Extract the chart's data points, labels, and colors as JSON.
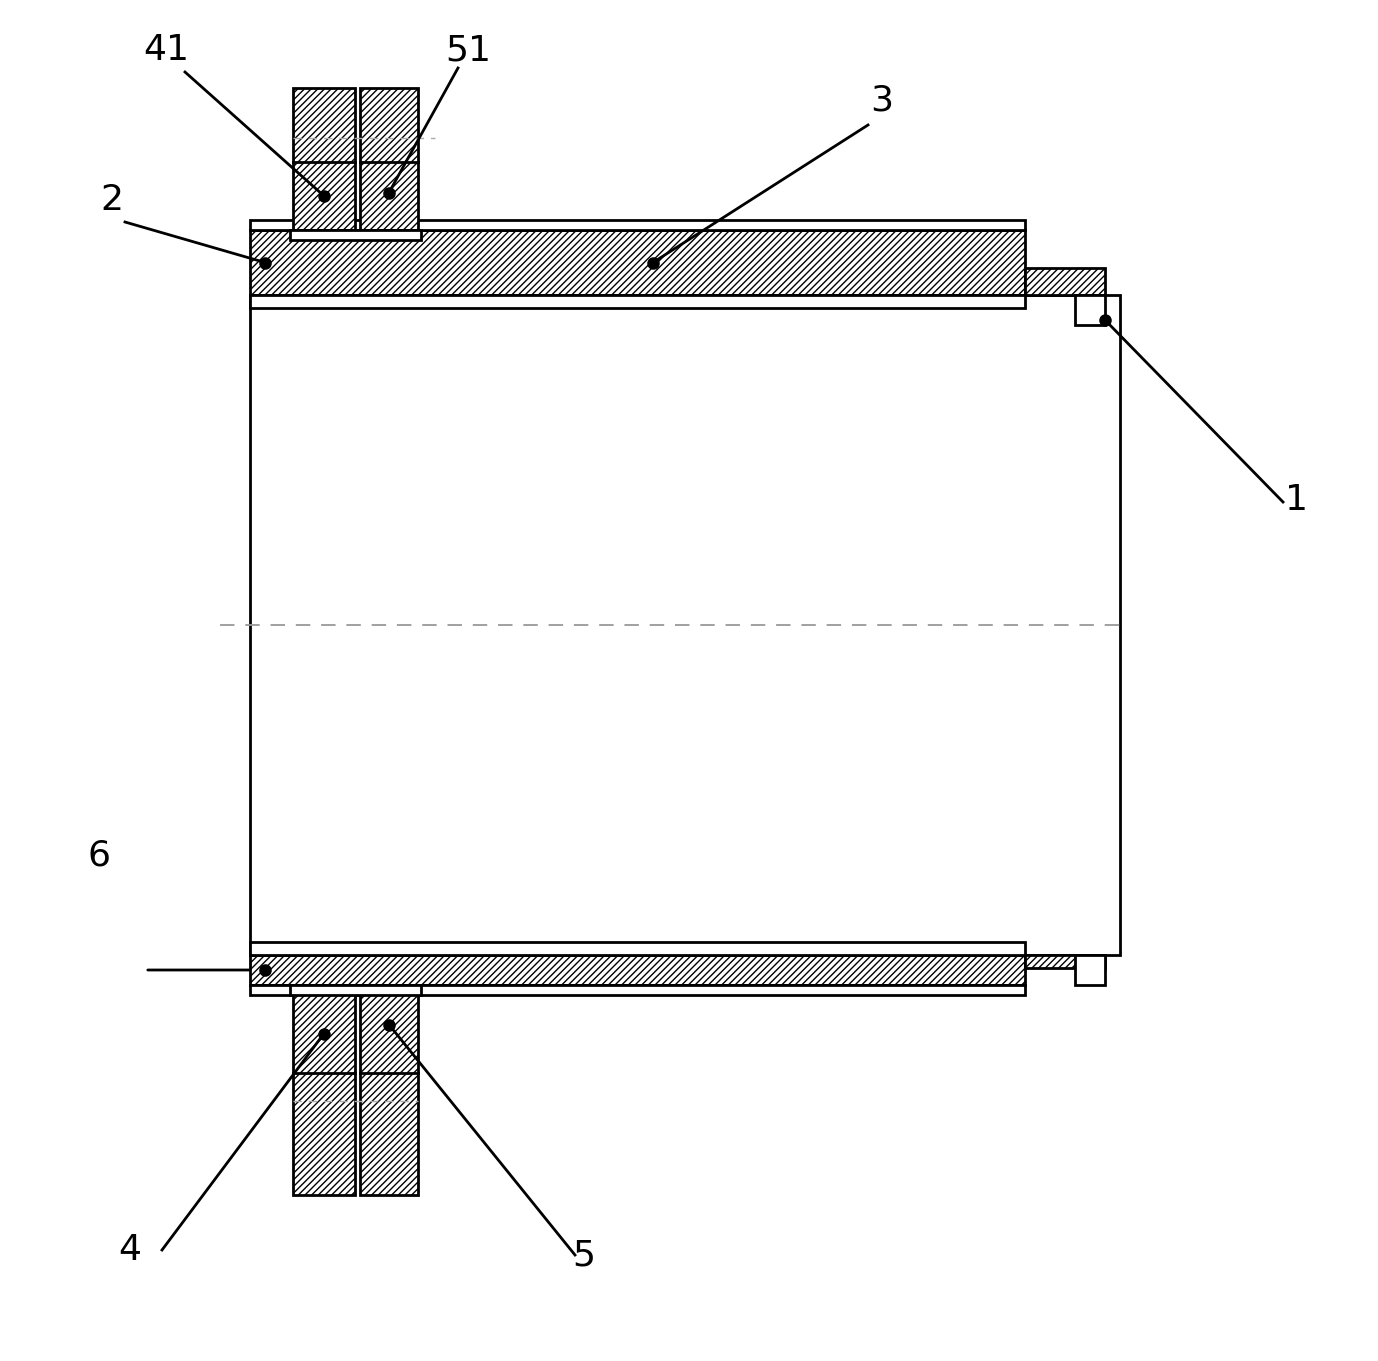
{
  "bg_color": "#ffffff",
  "line_color": "#000000",
  "fig_width": 13.78,
  "fig_height": 13.61,
  "label_fontsize": 26
}
